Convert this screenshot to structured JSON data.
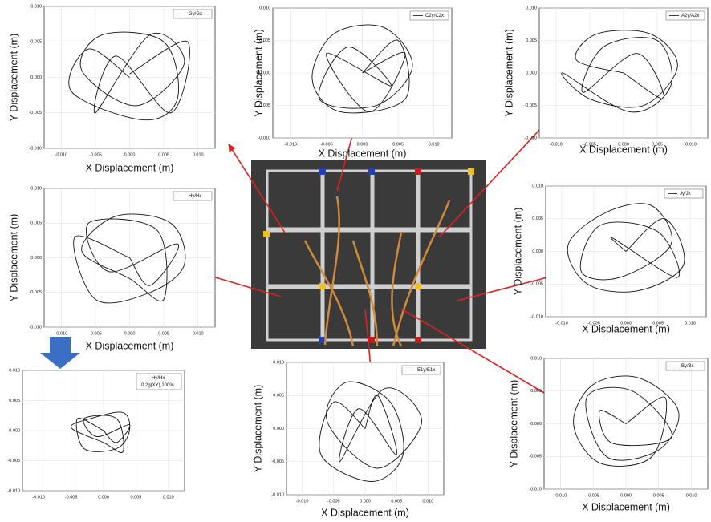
{
  "chart_data": [
    {
      "type": "line",
      "xlabel": "X Displacement (m)",
      "ylabel": "Y Displacement (m)",
      "xlim": [
        -0.0125,
        0.0125
      ],
      "ylim": [
        -0.01,
        0.01
      ],
      "xticks": [
        {
          "value": -0.01,
          "label": "-0.010"
        },
        {
          "value": -0.005,
          "label": "-0.005"
        },
        {
          "value": 0,
          "label": "0.000"
        },
        {
          "value": 0.005,
          "label": "0.005"
        },
        {
          "value": 0.01,
          "label": "0.010"
        }
      ],
      "yticks": [
        {
          "value": -0.01,
          "label": "-0.010"
        },
        {
          "value": -0.005,
          "label": "-0.005"
        },
        {
          "value": 0,
          "label": "0.000"
        },
        {
          "value": 0.005,
          "label": "0.005"
        },
        {
          "value": 0.01,
          "label": "0.010"
        }
      ],
      "series": [
        {
          "name": "Gy/Gx",
          "color": "#111111",
          "x": [
            0,
            -0.006,
            -0.0085,
            0.002,
            0.007,
            0.005,
            -0.004,
            -0.007,
            0.001,
            0.008,
            0.003,
            -0.005,
            -0.002,
            0.006,
            0.0085,
            0
          ],
          "values": [
            0,
            0.004,
            -0.002,
            -0.006,
            -0.003,
            0.005,
            0.006,
            0.001,
            -0.004,
            0.002,
            0.006,
            -0.005,
            0.003,
            -0.005,
            0.005,
            0.0005
          ]
        }
      ]
    },
    {
      "type": "line",
      "xlabel": "X Displacement (m)",
      "ylabel": "Y Displacement (m)",
      "xlim": [
        -0.0125,
        0.0125
      ],
      "ylim": [
        -0.01,
        0.01
      ],
      "xticks": [
        {
          "value": -0.01,
          "label": "-0.010"
        },
        {
          "value": -0.005,
          "label": "-0.005"
        },
        {
          "value": 0,
          "label": "0.000"
        },
        {
          "value": 0.005,
          "label": "0.005"
        },
        {
          "value": 0.01,
          "label": "0.010"
        }
      ],
      "yticks": [
        {
          "value": -0.01,
          "label": "-0.010"
        },
        {
          "value": -0.005,
          "label": "-0.005"
        },
        {
          "value": 0,
          "label": "0.000"
        },
        {
          "value": 0.005,
          "label": "0.005"
        },
        {
          "value": 0.01,
          "label": "0.010"
        }
      ],
      "series": [
        {
          "name": "C2y/C2x",
          "color": "#111111",
          "x": [
            0,
            0.005,
            0.006,
            -0.003,
            -0.007,
            -0.004,
            0.003,
            0.007,
            0.002,
            -0.006,
            -0.002,
            0.004,
            -0.005,
            0.001,
            0.006,
            0
          ],
          "values": [
            0,
            0.005,
            -0.004,
            -0.006,
            -0.001,
            0.006,
            0.007,
            0.001,
            -0.005,
            -0.004,
            0.004,
            -0.002,
            0.003,
            -0.006,
            0.003,
            0
          ]
        }
      ]
    },
    {
      "type": "line",
      "xlabel": "X Displacement (m)",
      "ylabel": "Y Displacement (m)",
      "xlim": [
        -0.0125,
        0.0125
      ],
      "ylim": [
        -0.01,
        0.01
      ],
      "xticks": [
        {
          "value": -0.01,
          "label": "-0.010"
        },
        {
          "value": -0.005,
          "label": "-0.005"
        },
        {
          "value": 0,
          "label": "0.000"
        },
        {
          "value": 0.005,
          "label": "0.005"
        },
        {
          "value": 0.01,
          "label": "0.010"
        }
      ],
      "yticks": [
        {
          "value": -0.01,
          "label": "-0.010"
        },
        {
          "value": -0.005,
          "label": "-0.005"
        },
        {
          "value": 0,
          "label": "0.000"
        },
        {
          "value": 0.005,
          "label": "0.005"
        },
        {
          "value": 0.01,
          "label": "0.010"
        }
      ],
      "series": [
        {
          "name": "A2y/A2x",
          "color": "#111111",
          "x": [
            0,
            -0.007,
            -0.004,
            0.004,
            0.008,
            0.003,
            -0.005,
            -0.009,
            0.001,
            0.007,
            0.005,
            -0.003,
            -0.006,
            0.002,
            0.006,
            0
          ],
          "values": [
            0,
            0.002,
            0.006,
            0.006,
            0.001,
            -0.005,
            -0.004,
            0,
            -0.006,
            -0.002,
            0.005,
            0.004,
            -0.003,
            0.003,
            -0.004,
            0
          ]
        }
      ]
    },
    {
      "type": "line",
      "xlabel": "X Displacement (m)",
      "ylabel": "Y Displacement (m)",
      "xlim": [
        -0.0125,
        0.0125
      ],
      "ylim": [
        -0.01,
        0.01
      ],
      "xticks": [
        {
          "value": -0.01,
          "label": "-0.010"
        },
        {
          "value": -0.005,
          "label": "-0.005"
        },
        {
          "value": 0,
          "label": "0.000"
        },
        {
          "value": 0.005,
          "label": "0.005"
        },
        {
          "value": 0.01,
          "label": "0.010"
        }
      ],
      "yticks": [
        {
          "value": -0.01,
          "label": "-0.010"
        },
        {
          "value": -0.005,
          "label": "-0.005"
        },
        {
          "value": 0,
          "label": "0.000"
        },
        {
          "value": 0.005,
          "label": "0.005"
        },
        {
          "value": 0.01,
          "label": "0.010"
        }
      ],
      "series": [
        {
          "name": "Hy/Hx",
          "color": "#111111",
          "x": [
            0,
            -0.008,
            -0.005,
            0.003,
            0.008,
            0.006,
            -0.002,
            -0.007,
            0,
            0.005,
            0.004,
            -0.006,
            -0.003,
            0.007,
            0.003,
            0
          ],
          "values": [
            0,
            0.003,
            -0.006,
            -0.005,
            -0.001,
            0.005,
            0.006,
            0.001,
            -0.003,
            -0.006,
            0.004,
            0.005,
            -0.002,
            0.002,
            -0.004,
            0
          ]
        }
      ]
    },
    {
      "type": "line",
      "xlabel": "X Displacement (m)",
      "ylabel": "Y Displacement (m)",
      "xlim": [
        -0.0125,
        0.0125
      ],
      "ylim": [
        -0.01,
        0.01
      ],
      "xticks": [
        {
          "value": -0.01,
          "label": "-0.010"
        },
        {
          "value": -0.005,
          "label": "-0.005"
        },
        {
          "value": 0,
          "label": "0.000"
        },
        {
          "value": 0.005,
          "label": "0.005"
        },
        {
          "value": 0.01,
          "label": "0.010"
        }
      ],
      "yticks": [
        {
          "value": -0.01,
          "label": "-0.010"
        },
        {
          "value": -0.005,
          "label": "-0.005"
        },
        {
          "value": 0,
          "label": "0.000"
        },
        {
          "value": 0.005,
          "label": "0.005"
        },
        {
          "value": 0.01,
          "label": "0.010"
        }
      ],
      "series": [
        {
          "name": "Jy/Jx",
          "color": "#111111",
          "x": [
            0,
            0.006,
            0.009,
            0.002,
            -0.006,
            -0.009,
            -0.003,
            0.004,
            0.007,
            -0.001,
            -0.007,
            -0.004,
            0.005,
            0.008,
            -0.002,
            0
          ],
          "values": [
            0,
            0.005,
            -0.002,
            -0.006,
            -0.005,
            0.001,
            0.006,
            0.007,
            0.001,
            -0.004,
            -0.003,
            0.004,
            0.003,
            -0.004,
            0.002,
            0
          ]
        }
      ]
    },
    {
      "type": "line",
      "annotation": "0.2g(XY),100%",
      "xlim": [
        -0.0125,
        0.0125
      ],
      "ylim": [
        -0.01,
        0.01
      ],
      "xticks": [
        {
          "value": -0.01,
          "label": "-0.010"
        },
        {
          "value": -0.005,
          "label": "-0.005"
        },
        {
          "value": 0,
          "label": "0.000"
        },
        {
          "value": 0.005,
          "label": "0.005"
        },
        {
          "value": 0.01,
          "label": "0.010"
        }
      ],
      "yticks": [
        {
          "value": -0.01,
          "label": "-0.010"
        },
        {
          "value": -0.005,
          "label": "-0.005"
        },
        {
          "value": 0,
          "label": "0.000"
        },
        {
          "value": 0.005,
          "label": "0.005"
        },
        {
          "value": 0.01,
          "label": "0.010"
        }
      ],
      "series": [
        {
          "name": "Hy/Hx",
          "color": "#111111",
          "x": [
            0,
            -0.004,
            -0.003,
            0.002,
            0.004,
            0.003,
            -0.002,
            -0.005,
            0,
            0.003,
            0.002,
            -0.003,
            -0.001,
            0.004,
            0.002,
            0
          ],
          "values": [
            0,
            0.002,
            -0.003,
            -0.003,
            0,
            0.003,
            0.002,
            0.0005,
            -0.002,
            -0.0035,
            0.002,
            0.002,
            -0.001,
            0.001,
            -0.002,
            0
          ]
        }
      ]
    },
    {
      "type": "line",
      "xlabel": "X Displacement (m)",
      "ylabel": "Y Displacement (m)",
      "xlim": [
        -0.0125,
        0.0125
      ],
      "ylim": [
        -0.01,
        0.01
      ],
      "xticks": [
        {
          "value": -0.01,
          "label": "-0.010"
        },
        {
          "value": -0.005,
          "label": "-0.005"
        },
        {
          "value": 0,
          "label": "0.000"
        },
        {
          "value": 0.005,
          "label": "0.005"
        },
        {
          "value": 0.01,
          "label": "0.010"
        }
      ],
      "yticks": [
        {
          "value": -0.01,
          "label": "-0.010"
        },
        {
          "value": -0.005,
          "label": "-0.005"
        },
        {
          "value": 0,
          "label": "0.000"
        },
        {
          "value": 0.005,
          "label": "0.005"
        },
        {
          "value": 0.01,
          "label": "0.010"
        }
      ],
      "series": [
        {
          "name": "E1y/E1x",
          "color": "#111111",
          "x": [
            0,
            -0.005,
            -0.007,
            0.001,
            0.006,
            0.004,
            -0.003,
            -0.006,
            0.002,
            0.009,
            0.003,
            -0.004,
            -0.001,
            0.005,
            0.002,
            0
          ],
          "values": [
            0,
            0.004,
            -0.004,
            -0.008,
            -0.004,
            0.004,
            0.007,
            0.001,
            -0.006,
            0.001,
            0.006,
            -0.005,
            0.003,
            -0.004,
            0.005,
            0
          ]
        }
      ]
    },
    {
      "type": "line",
      "xlabel": "X Displacement (m)",
      "ylabel": "Y Displacement (m)",
      "xlim": [
        -0.0125,
        0.0125
      ],
      "ylim": [
        -0.01,
        0.01
      ],
      "xticks": [
        {
          "value": -0.01,
          "label": "-0.010"
        },
        {
          "value": -0.005,
          "label": "-0.005"
        },
        {
          "value": 0,
          "label": "0.000"
        },
        {
          "value": 0.005,
          "label": "0.005"
        },
        {
          "value": 0.01,
          "label": "0.010"
        }
      ],
      "yticks": [
        {
          "value": -0.01,
          "label": "-0.010"
        },
        {
          "value": -0.005,
          "label": "-0.005"
        },
        {
          "value": 0,
          "label": "0.000"
        },
        {
          "value": 0.005,
          "label": "0.005"
        },
        {
          "value": 0.01,
          "label": "0.010"
        }
      ],
      "series": [
        {
          "name": "By/Bx",
          "color": "#111111",
          "x": [
            0,
            0.006,
            0.004,
            -0.004,
            -0.008,
            -0.005,
            0.002,
            0.008,
            0.005,
            -0.003,
            -0.006,
            0.001,
            0.007,
            -0.002,
            -0.004,
            0
          ],
          "values": [
            0,
            0.004,
            -0.005,
            -0.006,
            0,
            0.006,
            0.007,
            0.002,
            -0.004,
            -0.005,
            0.004,
            0.005,
            -0.002,
            -0.003,
            0.002,
            0
          ]
        }
      ]
    }
  ]
}
